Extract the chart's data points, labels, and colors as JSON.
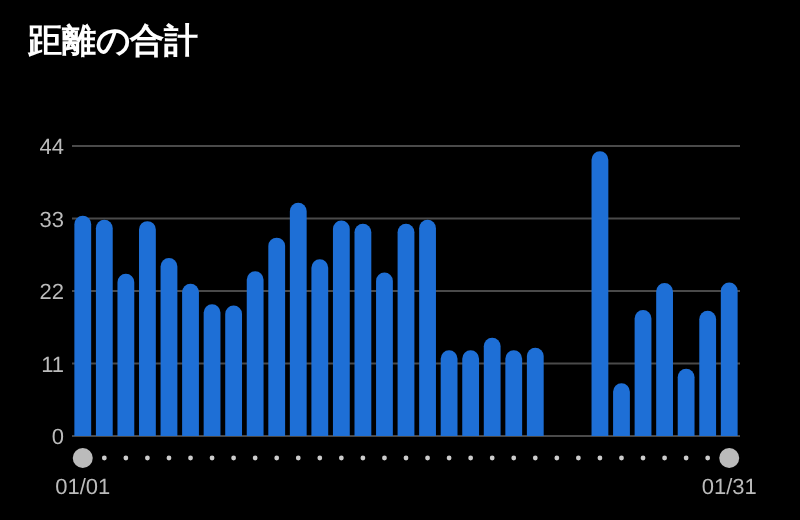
{
  "chart_data": {
    "type": "bar",
    "title": "距離の合計",
    "categories": [
      "01/01",
      null,
      null,
      null,
      null,
      null,
      null,
      null,
      null,
      null,
      null,
      null,
      null,
      null,
      null,
      null,
      null,
      null,
      null,
      null,
      null,
      null,
      null,
      null,
      null,
      null,
      null,
      null,
      null,
      null,
      "01/31"
    ],
    "values": [
      33.4,
      32.8,
      24.6,
      32.6,
      27.0,
      23.1,
      20.0,
      19.8,
      25.0,
      30.1,
      35.4,
      26.8,
      32.7,
      32.2,
      24.8,
      32.2,
      32.8,
      13.0,
      13.0,
      14.9,
      13.0,
      13.4,
      null,
      null,
      43.2,
      8.0,
      19.1,
      23.2,
      10.2,
      19.0,
      23.3
    ],
    "color": "#1e6fd6",
    "ylim": [
      0,
      44
    ],
    "yticks": [
      0,
      11,
      22,
      33,
      44
    ],
    "grid": "y"
  }
}
